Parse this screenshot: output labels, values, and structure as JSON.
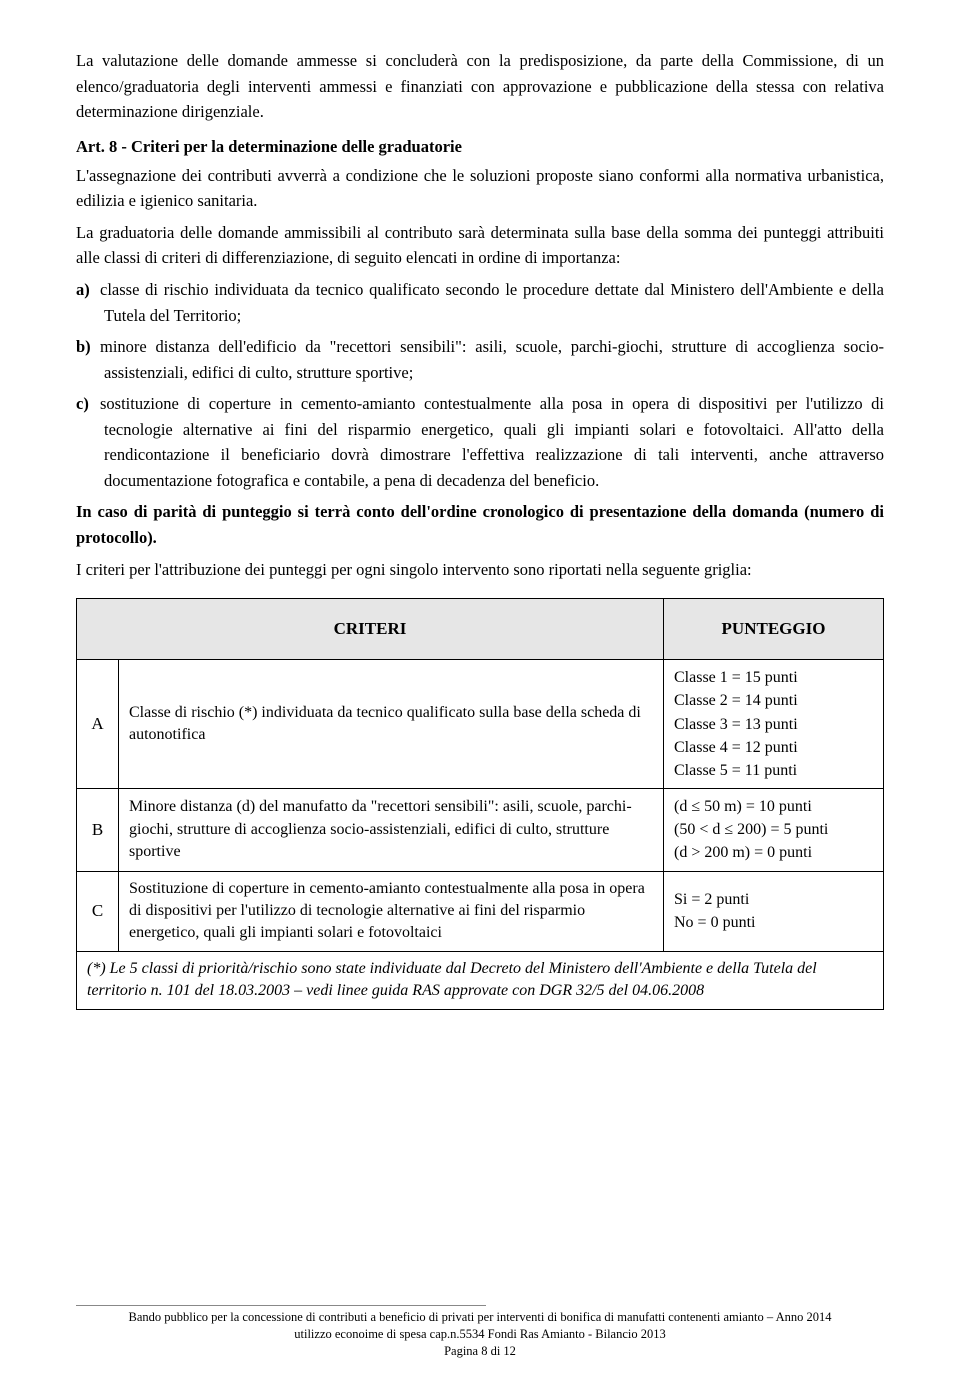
{
  "p1": "La valutazione delle domande ammesse si concluderà con la predisposizione, da parte della Commissione, di un elenco/graduatoria degli interventi ammessi e finanziati con approvazione e pubblicazione della stessa con relativa determinazione dirigenziale.",
  "art_heading": "Art. 8 - Criteri per la determinazione delle graduatorie",
  "p2": "L'assegnazione dei contributi avverrà a condizione che le soluzioni proposte siano conformi alla normativa urbanistica, edilizia e igienico sanitaria.",
  "p3": "La graduatoria delle domande ammissibili al contributo sarà determinata sulla base della somma dei punteggi attribuiti alle classi di criteri di differenziazione, di seguito elencati in ordine di importanza:",
  "list": {
    "a": "classe di rischio individuata da tecnico qualificato secondo le procedure dettate dal Ministero dell'Ambiente e della Tutela del Territorio;",
    "b": "minore distanza dell'edificio da \"recettori sensibili\": asili, scuole, parchi-giochi, strutture di accoglienza socio-assistenziali, edifici di culto, strutture sportive;",
    "c": "sostituzione di coperture in cemento-amianto contestualmente alla posa in opera di dispositivi per l'utilizzo di tecnologie alternative ai fini del risparmio energetico, quali gli impianti solari e fotovoltaici. All'atto della rendicontazione il beneficiario dovrà dimostrare l'effettiva realizzazione di tali interventi, anche attraverso documentazione fotografica e contabile, a pena di decadenza del beneficio."
  },
  "p4": "In caso di parità di punteggio si terrà conto dell'ordine cronologico di presentazione della domanda (numero di protocollo).",
  "p5": "I criteri per l'attribuzione dei punteggi per ogni singolo intervento sono riportati nella seguente griglia:",
  "table": {
    "headers": {
      "col1": "",
      "col2": "CRITERI",
      "col3": "PUNTEGGIO"
    },
    "rows": [
      {
        "letter": "A",
        "desc": "Classe di rischio (*) individuata da tecnico qualificato sulla base della scheda di autonotifica",
        "pts": "Classe 1 = 15 punti\nClasse 2 = 14 punti\nClasse 3 = 13 punti\nClasse 4 = 12 punti\nClasse 5 = 11 punti"
      },
      {
        "letter": "B",
        "desc": "Minore distanza (d) del manufatto da \"recettori sensibili\": asili, scuole, parchi-giochi, strutture di accoglienza socio-assistenziali, edifici di culto, strutture sportive",
        "pts": "(d ≤ 50 m) = 10 punti\n(50 < d ≤ 200) = 5 punti\n(d > 200 m) = 0 punti"
      },
      {
        "letter": "C",
        "desc": "Sostituzione di coperture in cemento-amianto contestualmente alla posa in opera di dispositivi per l'utilizzo di tecnologie alternative ai fini del risparmio energetico, quali gli impianti solari e fotovoltaici",
        "pts": "Si = 2 punti\nNo = 0 punti"
      }
    ],
    "footnote": "(*) Le 5 classi di priorità/rischio sono state individuate dal Decreto del Ministero dell'Ambiente e della Tutela del territorio n. 101 del 18.03.2003 – vedi linee guida RAS approvate con DGR 32/5 del 04.06.2008"
  },
  "footer": {
    "line1": "Bando pubblico per la concessione di contributi a beneficio di privati per interventi di bonifica di manufatti contenenti amianto – Anno 2014",
    "line2": "utilizzo econoime di spesa cap.n.5534 Fondi Ras Amianto - Bilancio 2013",
    "line3": "Pagina 8 di 12"
  }
}
